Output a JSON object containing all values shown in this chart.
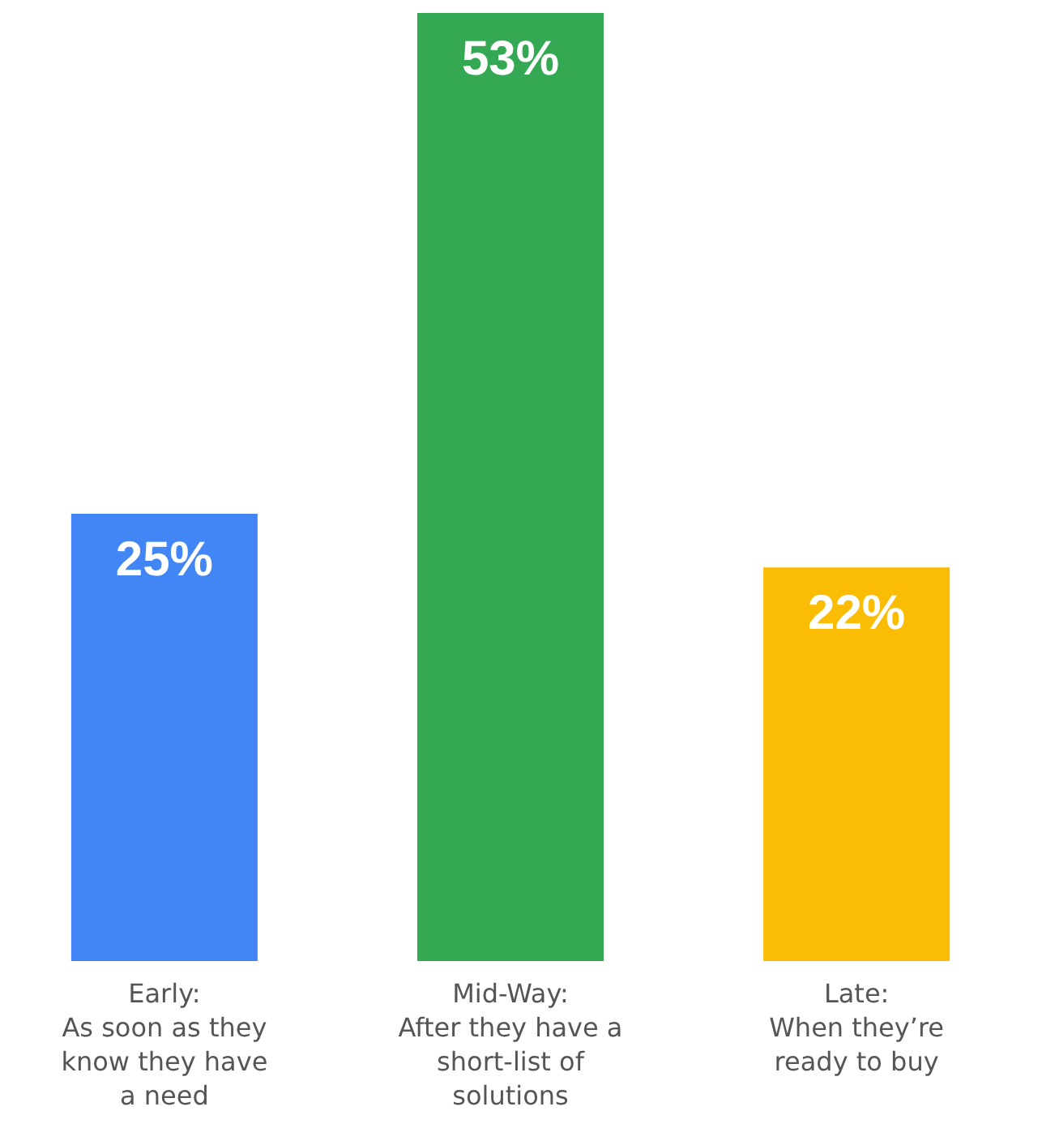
{
  "chart_data": {
    "type": "bar",
    "categories": [
      "Early:\nAs soon as they\nknow they have\na need",
      "Mid-Way:\nAfter they have a\nshort-list of\nsolutions",
      "Late:\nWhen they’re\nready to buy"
    ],
    "values": [
      25,
      53,
      22
    ],
    "colors": [
      "#4285f4",
      "#34a853",
      "#fbbc05"
    ],
    "value_labels": [
      "25%",
      "53%",
      "22%"
    ],
    "grid": false
  }
}
